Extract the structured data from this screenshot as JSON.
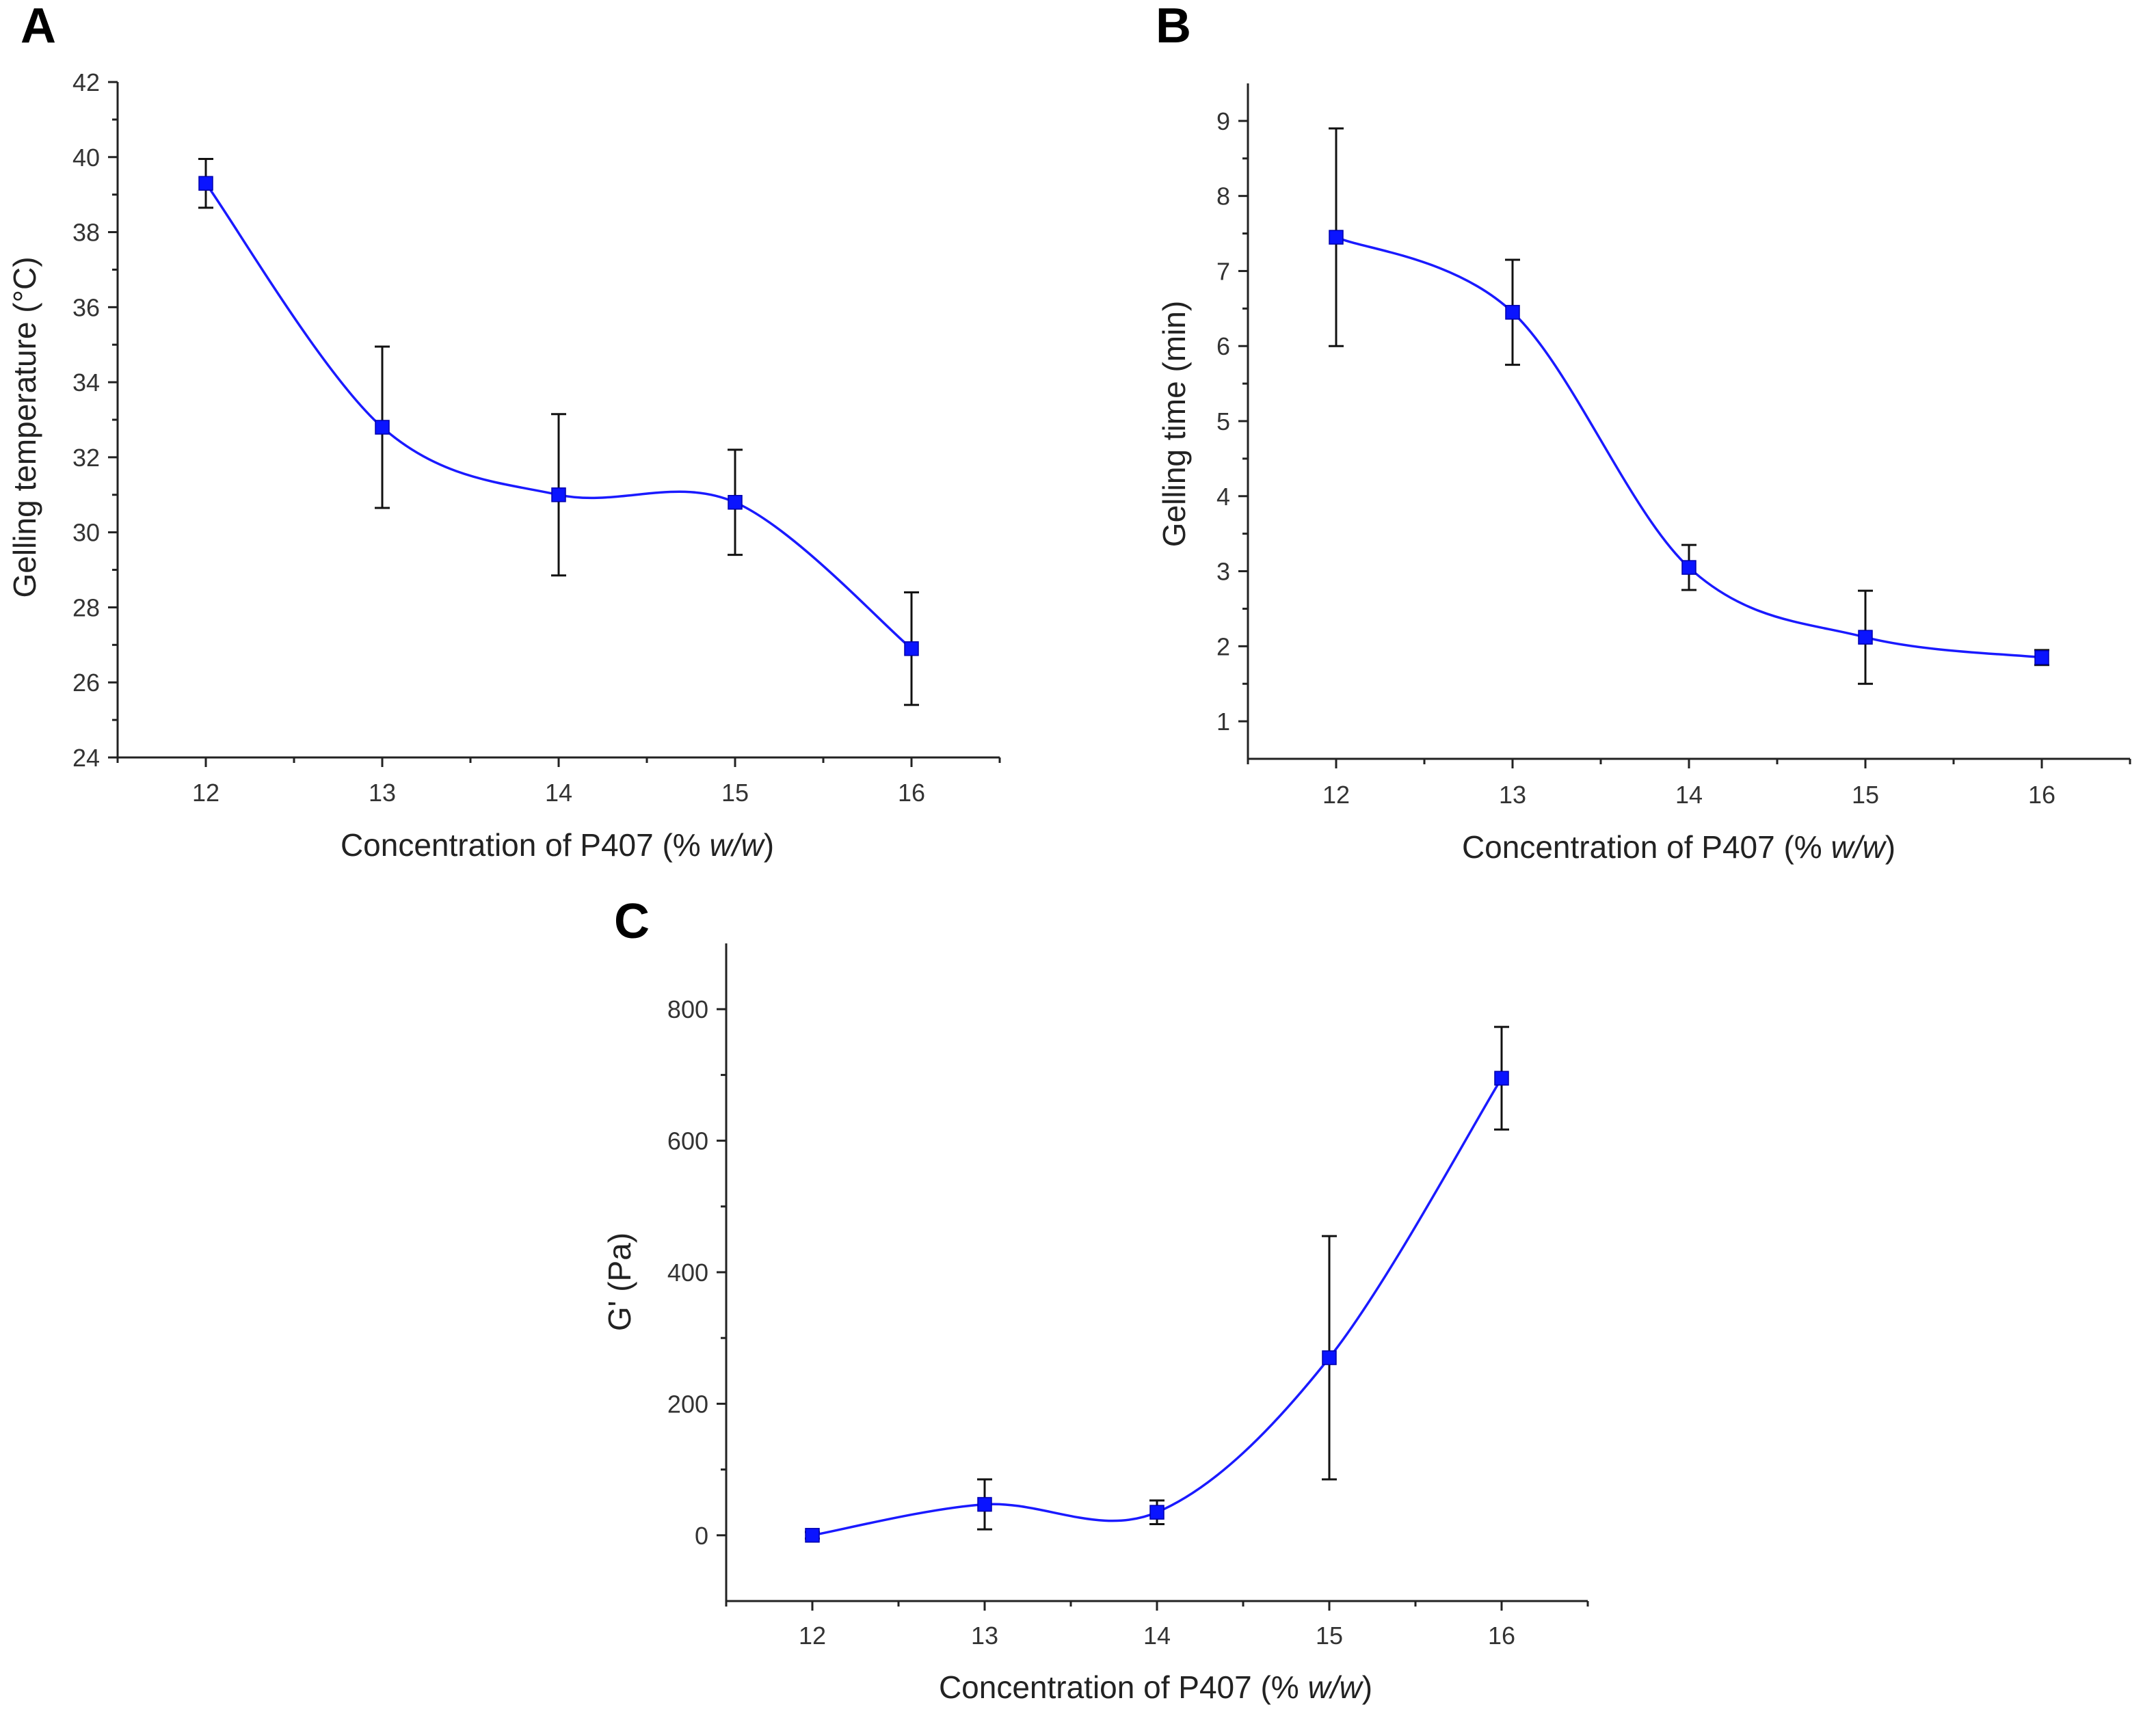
{
  "chart_data": [
    {
      "panel": "A",
      "type": "line",
      "xlabel_prefix": "Concentration of P407 (% ",
      "xlabel_italic": "w/w",
      "xlabel_suffix": ")",
      "ylabel": "Gelling temperature (°C)",
      "x": [
        12,
        13,
        14,
        15,
        16
      ],
      "y": [
        39.3,
        32.8,
        31.0,
        30.8,
        26.9
      ],
      "err": [
        0.65,
        2.15,
        2.15,
        1.4,
        1.5
      ],
      "xlim": [
        11.5,
        16.5
      ],
      "ylim": [
        24,
        42
      ],
      "xticks": [
        12,
        13,
        14,
        15,
        16
      ],
      "yticks": [
        24,
        26,
        28,
        30,
        32,
        34,
        36,
        38,
        40,
        42
      ],
      "grid": false
    },
    {
      "panel": "B",
      "type": "line",
      "xlabel_prefix": "Concentration of P407 (% ",
      "xlabel_italic": "w/w",
      "xlabel_suffix": ")",
      "ylabel": "Gelling time (min)",
      "x": [
        12,
        13,
        14,
        15,
        16
      ],
      "y": [
        7.45,
        6.45,
        3.05,
        2.12,
        1.85
      ],
      "err": [
        1.45,
        0.7,
        0.3,
        0.62,
        0.1
      ],
      "xlim": [
        11.5,
        16.5
      ],
      "ylim": [
        0.5,
        9.5
      ],
      "xticks": [
        12,
        13,
        14,
        15,
        16
      ],
      "yticks": [
        1,
        2,
        3,
        4,
        5,
        6,
        7,
        8,
        9
      ],
      "grid": false
    },
    {
      "panel": "C",
      "type": "line",
      "xlabel_prefix": "Concentration of P407 (% ",
      "xlabel_italic": "w/w",
      "xlabel_suffix": ")",
      "ylabel": "G' (Pa)",
      "x": [
        12,
        13,
        14,
        15,
        16
      ],
      "y": [
        0,
        47,
        35,
        270,
        695
      ],
      "err": [
        5,
        38,
        18,
        185,
        78
      ],
      "xlim": [
        11.5,
        16.5
      ],
      "ylim": [
        -100,
        900
      ],
      "xticks": [
        12,
        13,
        14,
        15,
        16
      ],
      "yticks": [
        0,
        200,
        400,
        600,
        800
      ],
      "grid": false
    }
  ]
}
